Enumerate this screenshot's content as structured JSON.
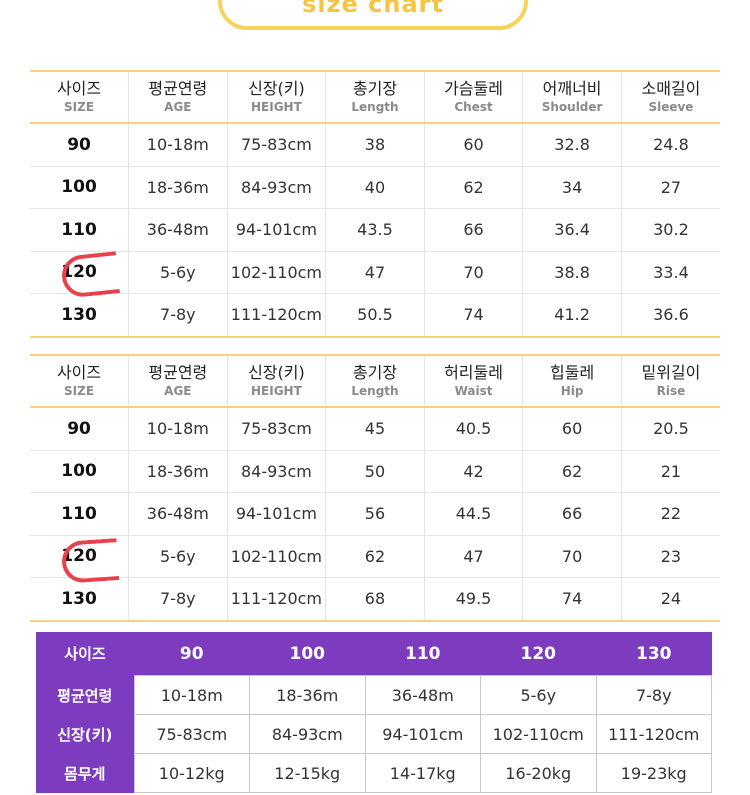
{
  "title": "size chart",
  "top_table": {
    "headers": [
      {
        "ko": "사이즈",
        "en": "SIZE"
      },
      {
        "ko": "평균연령",
        "en": "AGE"
      },
      {
        "ko": "신장(키)",
        "en": "HEIGHT"
      },
      {
        "ko": "총기장",
        "en": "Length"
      },
      {
        "ko": "가슴둘레",
        "en": "Chest"
      },
      {
        "ko": "어깨너비",
        "en": "Shoulder"
      },
      {
        "ko": "소매길이",
        "en": "Sleeve"
      }
    ],
    "rows": [
      [
        "90",
        "10-18m",
        "75-83cm",
        "38",
        "60",
        "32.8",
        "24.8"
      ],
      [
        "100",
        "18-36m",
        "84-93cm",
        "40",
        "62",
        "34",
        "27"
      ],
      [
        "110",
        "36-48m",
        "94-101cm",
        "43.5",
        "66",
        "36.4",
        "30.2"
      ],
      [
        "120",
        "5-6y",
        "102-110cm",
        "47",
        "70",
        "38.8",
        "33.4"
      ],
      [
        "130",
        "7-8y",
        "111-120cm",
        "50.5",
        "74",
        "41.2",
        "36.6"
      ]
    ]
  },
  "bottom_table": {
    "headers": [
      {
        "ko": "사이즈",
        "en": "SIZE"
      },
      {
        "ko": "평균연령",
        "en": "AGE"
      },
      {
        "ko": "신장(키)",
        "en": "HEIGHT"
      },
      {
        "ko": "총기장",
        "en": "Length"
      },
      {
        "ko": "허리둘레",
        "en": "Waist"
      },
      {
        "ko": "힙둘레",
        "en": "Hip"
      },
      {
        "ko": "밑위길이",
        "en": "Rise"
      }
    ],
    "rows": [
      [
        "90",
        "10-18m",
        "75-83cm",
        "45",
        "40.5",
        "60",
        "20.5"
      ],
      [
        "100",
        "18-36m",
        "84-93cm",
        "50",
        "42",
        "62",
        "21"
      ],
      [
        "110",
        "36-48m",
        "94-101cm",
        "56",
        "44.5",
        "66",
        "22"
      ],
      [
        "120",
        "5-6y",
        "102-110cm",
        "62",
        "47",
        "70",
        "23"
      ],
      [
        "130",
        "7-8y",
        "111-120cm",
        "68",
        "49.5",
        "74",
        "24"
      ]
    ]
  },
  "summary_table": {
    "header_label": "사이즈",
    "sizes": [
      "90",
      "100",
      "110",
      "120",
      "130"
    ],
    "rows": [
      {
        "label": "평균연령",
        "values": [
          "10-18m",
          "18-36m",
          "36-48m",
          "5-6y",
          "7-8y"
        ]
      },
      {
        "label": "신장(키)",
        "values": [
          "75-83cm",
          "84-93cm",
          "94-101cm",
          "102-110cm",
          "111-120cm"
        ]
      },
      {
        "label": "몸무게",
        "values": [
          "10-12kg",
          "12-15kg",
          "14-17kg",
          "16-20kg",
          "19-23kg"
        ]
      }
    ]
  },
  "colors": {
    "title": "#f5c542",
    "table_border": "#f3d27a",
    "summary_header": "#7d3bbf",
    "annotation": "#e8414b"
  }
}
